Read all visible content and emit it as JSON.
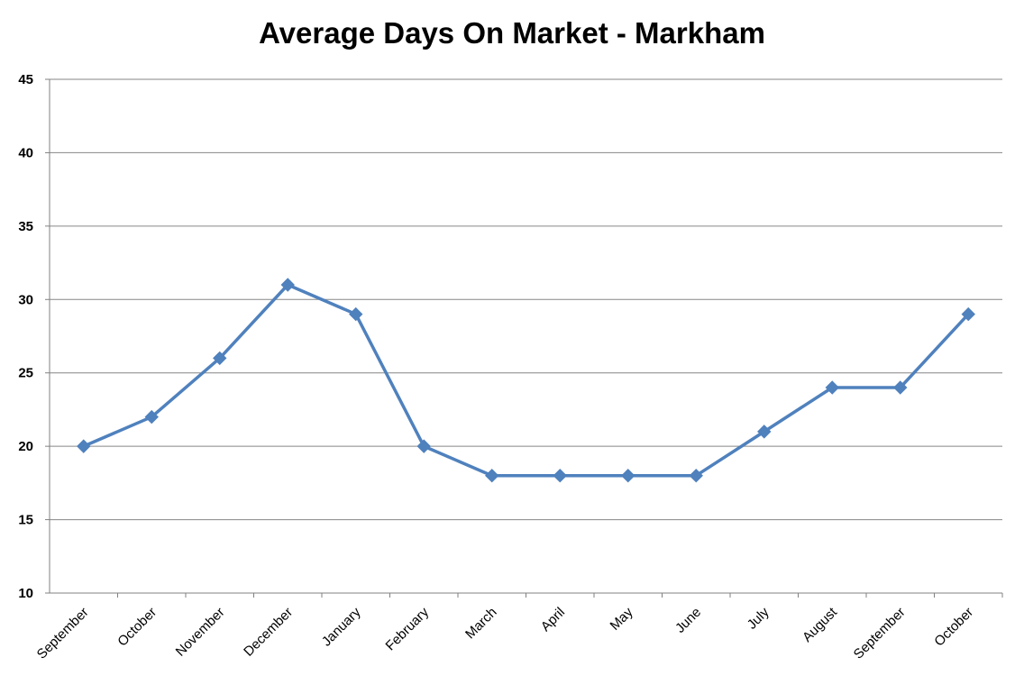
{
  "chart_data": {
    "type": "line",
    "title": "Average Days On Market - Markham",
    "categories": [
      "September",
      "October",
      "November",
      "December",
      "January",
      "February",
      "March",
      "April",
      "May",
      "June",
      "July",
      "August",
      "September",
      "October"
    ],
    "series": [
      {
        "values": [
          20,
          22,
          26,
          31,
          29,
          20,
          18,
          18,
          18,
          18,
          21,
          24,
          24,
          29
        ],
        "color": "#4F81BD"
      }
    ],
    "ylim": [
      10,
      45
    ],
    "yticks": [
      10,
      15,
      20,
      25,
      30,
      35,
      40,
      45
    ],
    "grid": true,
    "legend": "none"
  }
}
